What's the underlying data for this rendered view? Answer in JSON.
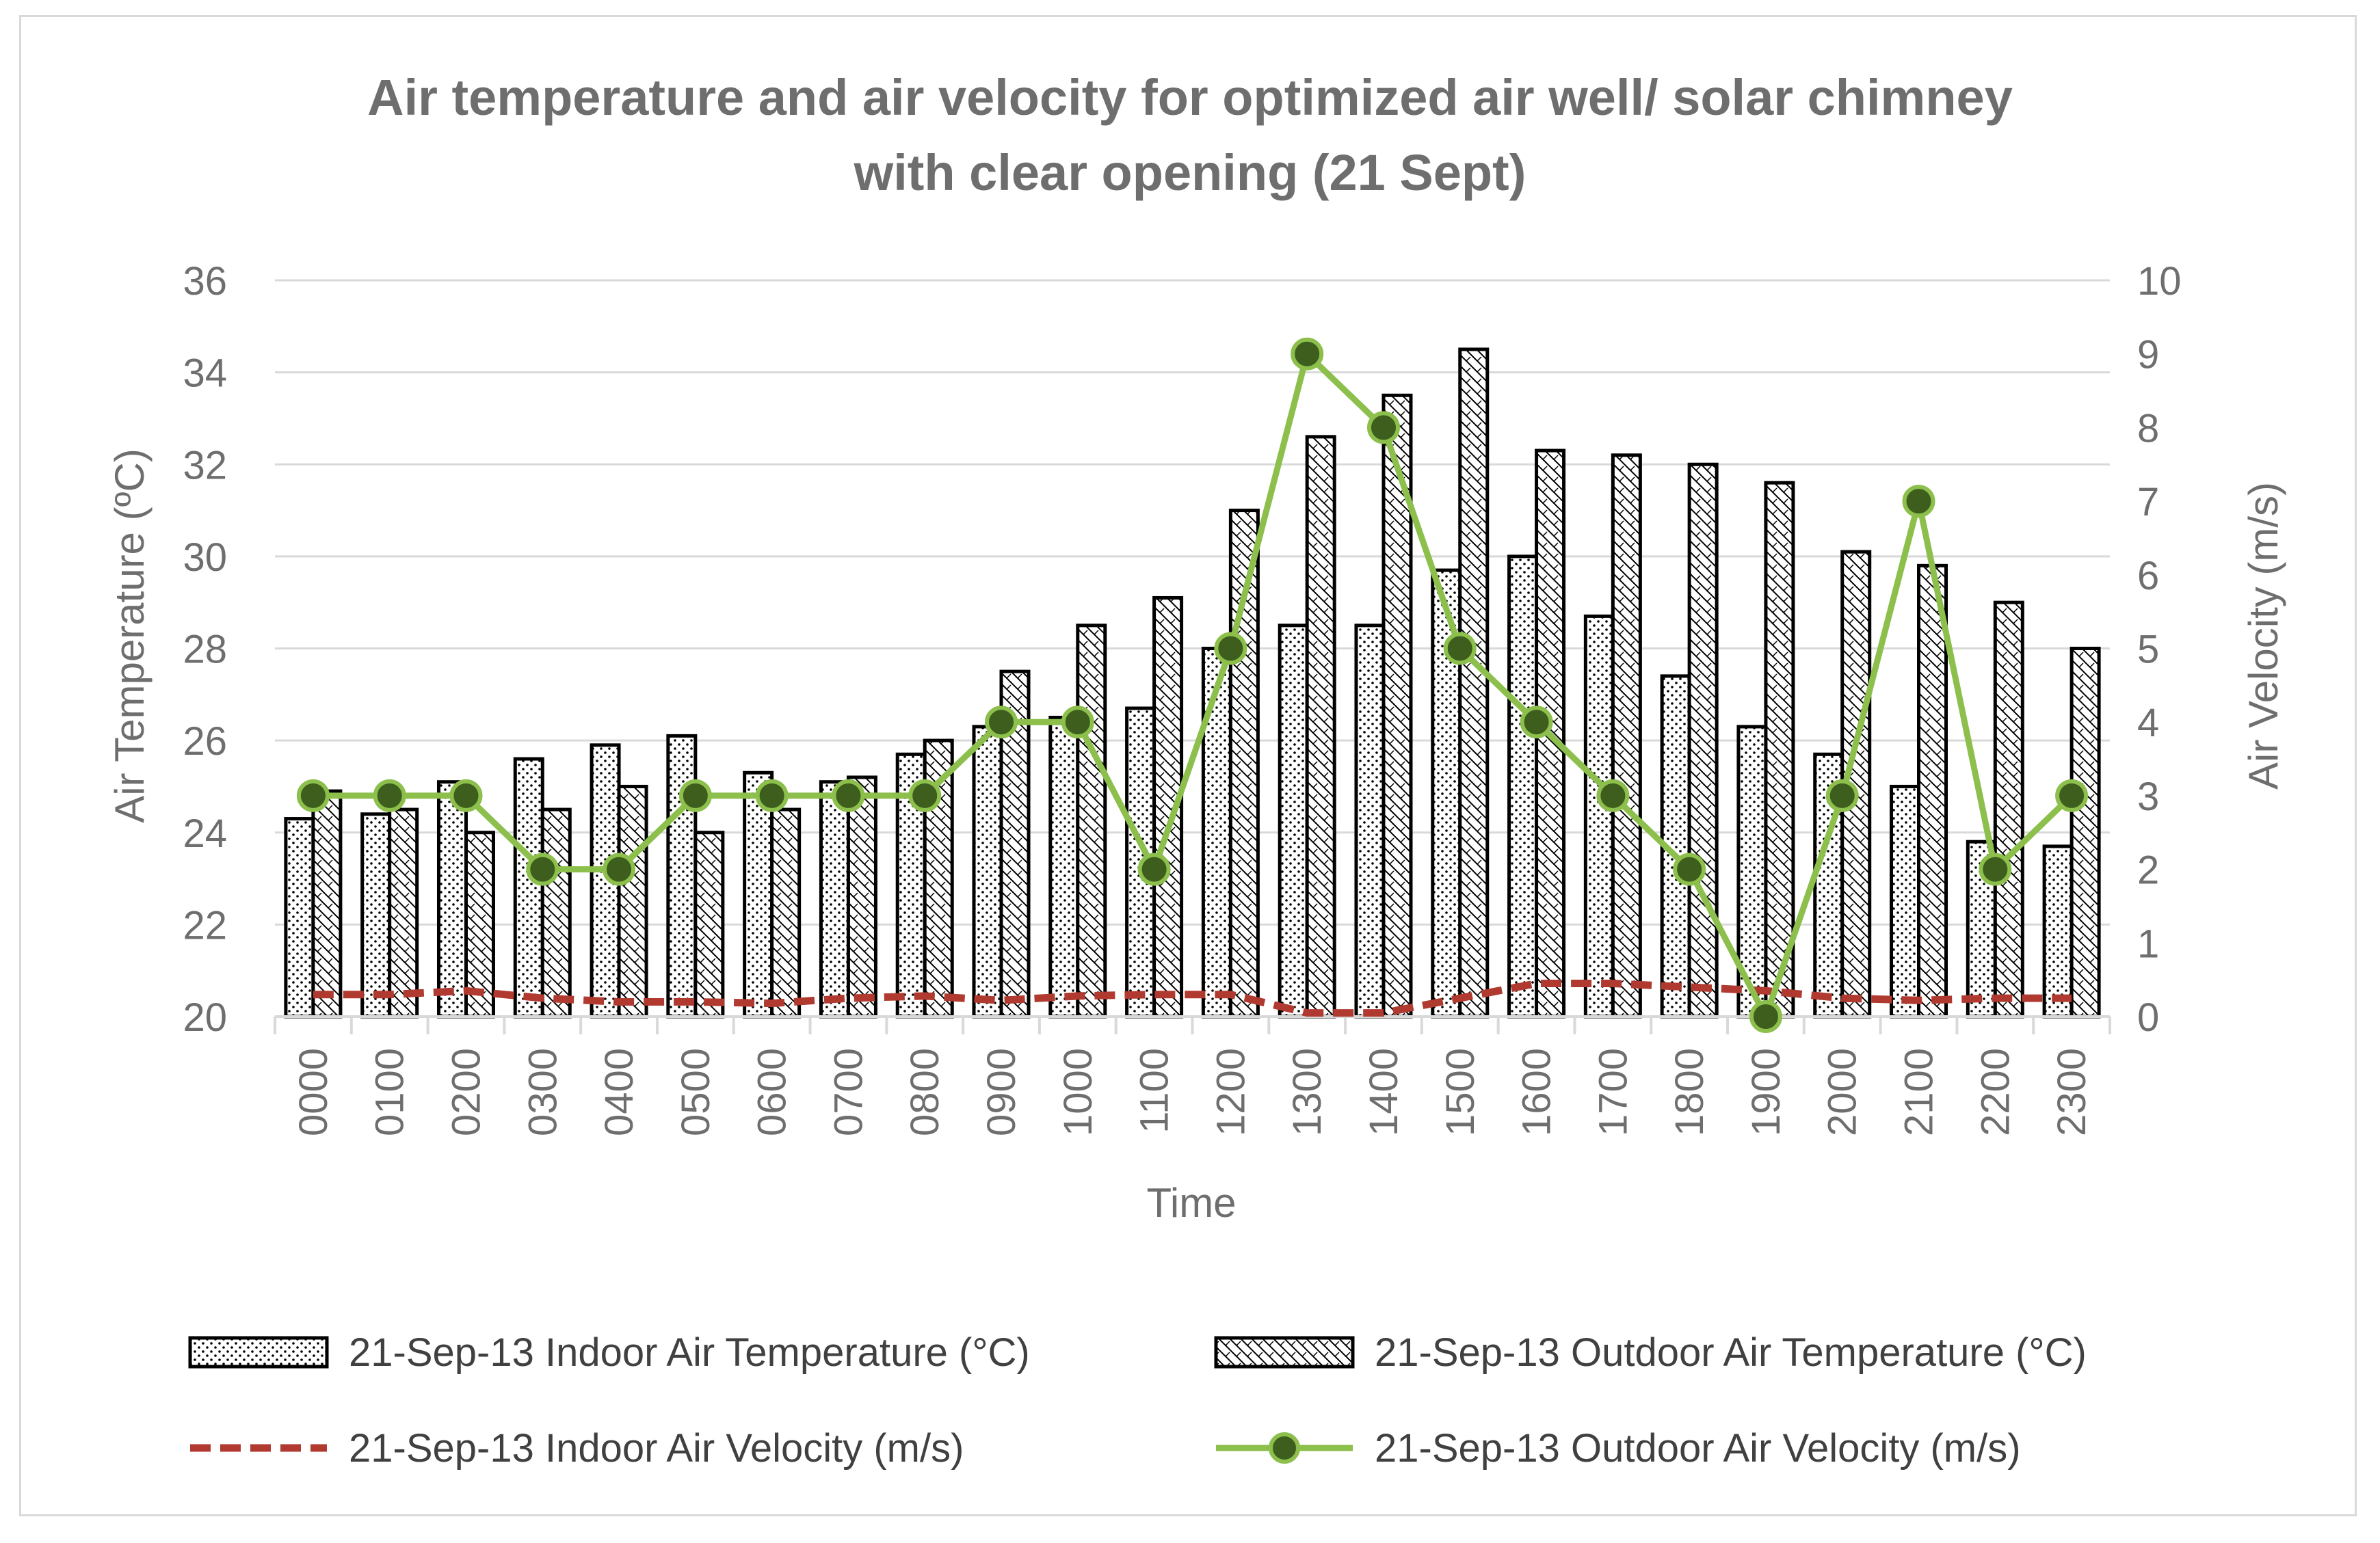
{
  "chart_data": {
    "type": "bar",
    "title_lines": [
      "Air temperature and air velocity for optimized air well/ solar chimney",
      "with clear opening (21 Sept)"
    ],
    "xlabel": "Time",
    "ylabel": "Air Temperature (ºC)",
    "y2label": "Air Velocity (m/s)",
    "ylim": [
      20,
      36
    ],
    "yticks": [
      "20",
      "22",
      "24",
      "26",
      "28",
      "30",
      "32",
      "34",
      "36"
    ],
    "y2lim": [
      0,
      10
    ],
    "y2ticks": [
      "0",
      "1",
      "2",
      "3",
      "4",
      "5",
      "6",
      "7",
      "8",
      "9",
      "10"
    ],
    "grid": true,
    "legend_position": "bottom",
    "categories": [
      "0000",
      "0100",
      "0200",
      "0300",
      "0400",
      "0500",
      "0600",
      "0700",
      "0800",
      "0900",
      "1000",
      "1100",
      "1200",
      "1300",
      "1400",
      "1500",
      "1600",
      "1700",
      "1800",
      "1900",
      "2000",
      "2100",
      "2200",
      "2300"
    ],
    "series": [
      {
        "name": "21-Sep-13 Indoor Air Temperature (°C)",
        "kind": "bar",
        "axis": "left",
        "pattern": "dots",
        "values": [
          24.3,
          24.4,
          25.1,
          25.6,
          25.9,
          26.1,
          25.3,
          25.1,
          25.7,
          26.3,
          26.5,
          26.7,
          28.0,
          28.5,
          28.5,
          29.7,
          30.0,
          28.7,
          27.4,
          26.3,
          25.7,
          25.0,
          23.8,
          23.7
        ]
      },
      {
        "name": "21-Sep-13 Outdoor Air Temperature (°C)",
        "kind": "bar",
        "axis": "left",
        "pattern": "hatch",
        "values": [
          24.9,
          24.5,
          24.0,
          24.5,
          25.0,
          24.0,
          24.5,
          25.2,
          26.0,
          27.5,
          28.5,
          29.1,
          31.0,
          32.6,
          33.5,
          34.5,
          32.3,
          32.2,
          32.0,
          31.6,
          30.1,
          29.8,
          29.0,
          28.0
        ]
      },
      {
        "name": "21-Sep-13 Indoor Air Velocity (m/s)",
        "kind": "line",
        "axis": "right",
        "color": "#b03a30",
        "style": "dashed",
        "values": [
          0.3,
          0.3,
          0.35,
          0.25,
          0.2,
          0.2,
          0.18,
          0.25,
          0.28,
          0.22,
          0.28,
          0.3,
          0.3,
          0.05,
          0.05,
          0.25,
          0.45,
          0.45,
          0.4,
          0.35,
          0.25,
          0.22,
          0.25,
          0.25
        ]
      },
      {
        "name": "21-Sep-13 Outdoor Air Velocity (m/s)",
        "kind": "line",
        "axis": "right",
        "color": "#8cbf4b",
        "marker_color": "#3d5e1d",
        "style": "solid",
        "values": [
          3,
          3,
          3,
          2,
          2,
          3,
          3,
          3,
          3,
          4,
          4,
          2,
          5,
          9,
          8,
          5,
          4,
          3,
          2,
          0,
          3,
          7,
          2,
          3
        ]
      }
    ]
  }
}
